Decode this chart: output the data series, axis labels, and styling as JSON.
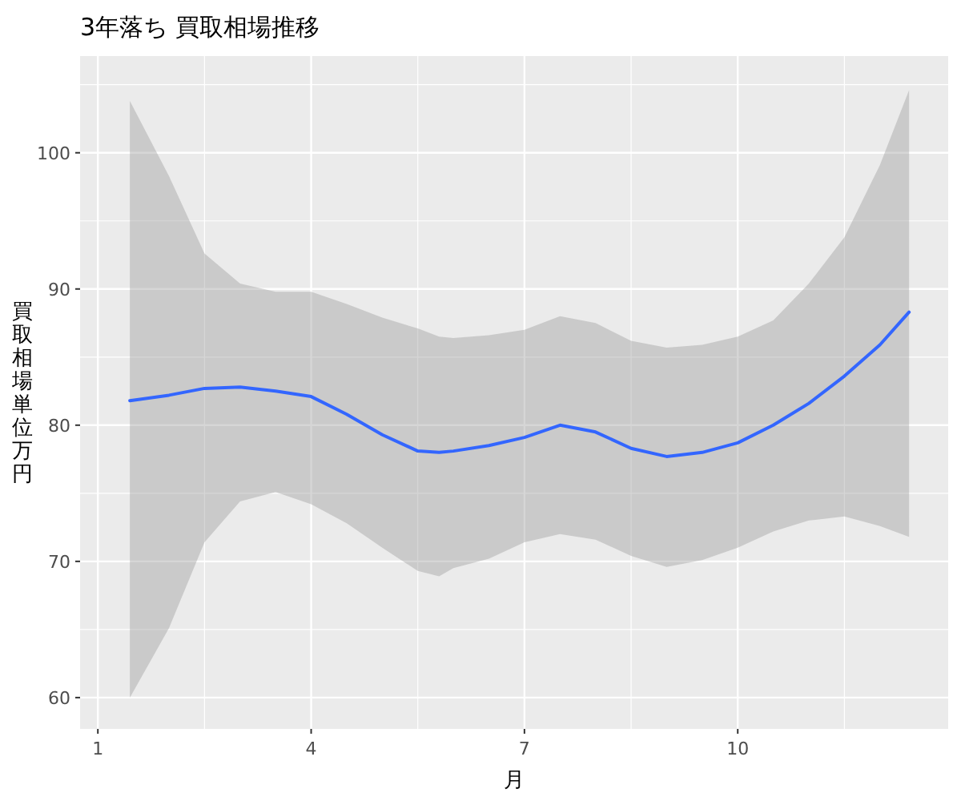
{
  "chart_data": {
    "type": "line",
    "title": "3年落ち 買取相場推移",
    "xlabel": "月",
    "ylabel": "買取相場単位万円",
    "xlim": [
      0.75,
      12.96
    ],
    "ylim": [
      57.7,
      107.1
    ],
    "xticks": [
      1,
      4,
      7,
      10
    ],
    "yticks": [
      60,
      70,
      80,
      90,
      100
    ],
    "grid": true,
    "series": [
      {
        "color": "#3366ff",
        "x": [
          1.45,
          2,
          2.5,
          3,
          3.5,
          4,
          4.5,
          5,
          5.5,
          5.8,
          6,
          6.5,
          7,
          7.5,
          8,
          8.5,
          9,
          9.5,
          10,
          10.5,
          11,
          11.5,
          12,
          12.41
        ],
        "values": [
          81.8,
          82.2,
          82.7,
          82.8,
          82.5,
          82.1,
          80.8,
          79.3,
          78.1,
          78.0,
          78.1,
          78.5,
          79.1,
          80.0,
          79.5,
          78.3,
          77.7,
          78.0,
          78.7,
          80.0,
          81.6,
          83.6,
          85.9,
          88.3
        ],
        "upper": [
          103.8,
          98.3,
          92.6,
          90.4,
          89.8,
          89.8,
          88.9,
          87.9,
          87.1,
          86.5,
          86.4,
          86.6,
          87.0,
          88.0,
          87.5,
          86.2,
          85.7,
          85.9,
          86.5,
          87.7,
          90.4,
          93.8,
          99.1,
          104.6
        ],
        "lower": [
          60.0,
          65.1,
          71.4,
          74.4,
          75.1,
          74.2,
          72.8,
          71.0,
          69.3,
          68.9,
          69.5,
          70.2,
          71.4,
          72.0,
          71.6,
          70.4,
          69.6,
          70.1,
          71.0,
          72.2,
          73.0,
          73.3,
          72.6,
          71.8
        ]
      }
    ]
  }
}
